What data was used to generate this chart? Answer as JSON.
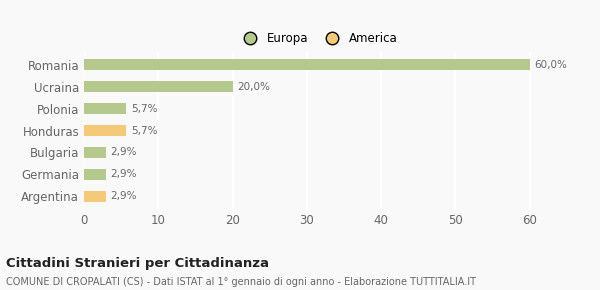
{
  "categories": [
    "Romania",
    "Ucraina",
    "Polonia",
    "Honduras",
    "Bulgaria",
    "Germania",
    "Argentina"
  ],
  "values": [
    60.0,
    20.0,
    5.7,
    5.7,
    2.9,
    2.9,
    2.9
  ],
  "labels": [
    "60,0%",
    "20,0%",
    "5,7%",
    "5,7%",
    "2,9%",
    "2,9%",
    "2,9%"
  ],
  "colors": [
    "#b5c98e",
    "#b5c98e",
    "#b5c98e",
    "#f5c97a",
    "#b5c98e",
    "#b5c98e",
    "#f5c97a"
  ],
  "legend": [
    {
      "label": "Europa",
      "color": "#b5c98e"
    },
    {
      "label": "America",
      "color": "#f5c97a"
    }
  ],
  "xlim": [
    0,
    63
  ],
  "xticks": [
    0,
    10,
    20,
    30,
    40,
    50,
    60
  ],
  "title": "Cittadini Stranieri per Cittadinanza",
  "subtitle": "COMUNE DI CROPALATI (CS) - Dati ISTAT al 1° gennaio di ogni anno - Elaborazione TUTTITALIA.IT",
  "background_color": "#f9f9f9",
  "grid_color": "#ffffff",
  "bar_height": 0.5
}
